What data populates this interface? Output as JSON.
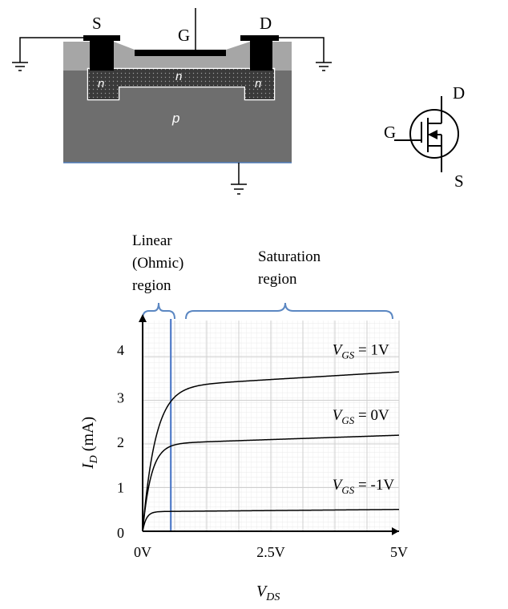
{
  "device": {
    "source_label": "S",
    "gate_label": "G",
    "drain_label": "D",
    "n_left": "n",
    "n_channel": "n",
    "n_right": "n",
    "substrate_label": "p"
  },
  "symbol": {
    "drain_label": "D",
    "gate_label": "G",
    "source_label": "S"
  },
  "regions": {
    "linear_line1": "Linear",
    "linear_line2": "(Ohmic)",
    "linear_line3": "region",
    "saturation_line1": "Saturation",
    "saturation_line2": "region"
  },
  "colors": {
    "oxide": "#a6a6a6",
    "substrate": "#6e6e6e",
    "n_region": "#404040",
    "contact": "#000000",
    "brace": "#5b87c2",
    "boundary_line": "#4472c4",
    "grid": "#d9d9d9"
  },
  "chart_data": {
    "type": "line",
    "xlabel_main": "V",
    "xlabel_sub": "DS",
    "ylabel_main": "I",
    "ylabel_sub": "D",
    "ylabel_unit": " (mA)",
    "x_tick_labels": [
      "0V",
      "2.5V",
      "5V"
    ],
    "y_tick_labels": [
      "0",
      "1",
      "2",
      "3",
      "4"
    ],
    "xlim": [
      0,
      5
    ],
    "ylim": [
      0,
      4.9
    ],
    "ohmic_boundary_vds": 0.55,
    "series": [
      {
        "label_main": "V",
        "label_sub": "GS",
        "label_rest": " = 1V",
        "isat": 3.3,
        "slope": 0.07,
        "k": 4.0,
        "label_at": [
          3.7,
          4.05
        ]
      },
      {
        "label_main": "V",
        "label_sub": "GS",
        "label_rest": " = 0V",
        "isat": 2.0,
        "slope": 0.04,
        "k": 6.0,
        "label_at": [
          3.7,
          2.55
        ]
      },
      {
        "label_main": "V",
        "label_sub": "GS",
        "label_rest": " = -1V",
        "isat": 0.45,
        "slope": 0.01,
        "k": 14.0,
        "label_at": [
          3.7,
          0.95
        ]
      }
    ]
  }
}
